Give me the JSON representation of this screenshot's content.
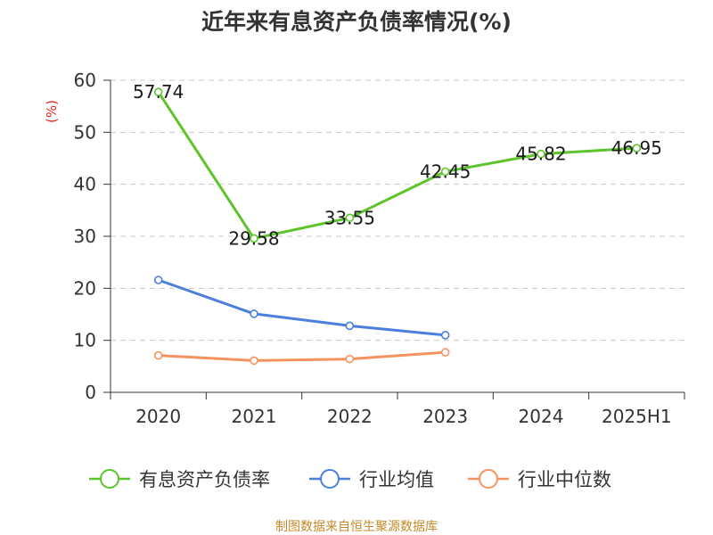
{
  "title": "近年来有息资产负债率情况(%)",
  "source": "制图数据来自恒生聚源数据库",
  "chart_data": {
    "type": "line",
    "title": "近年来有息资产负债率情况(%)",
    "ylabel": "(%)",
    "xlabel": "",
    "categories": [
      "2020",
      "2021",
      "2022",
      "2023",
      "2024",
      "2025H1"
    ],
    "ylim": [
      0,
      60
    ],
    "yticks": [
      0,
      10,
      20,
      30,
      40,
      50,
      60
    ],
    "grid": "horizontal-dashed",
    "legend_position": "bottom",
    "series": [
      {
        "name": "有息资产负债率",
        "color": "#5dc42a",
        "values": [
          57.74,
          29.58,
          33.55,
          42.45,
          45.82,
          46.95
        ],
        "labels": [
          "57.74",
          "29.58",
          "33.55",
          "42.45",
          "45.82",
          "46.95"
        ]
      },
      {
        "name": "行业均值",
        "color": "#4a7fde",
        "values": [
          21.6,
          15.1,
          12.8,
          11.0,
          null,
          null
        ]
      },
      {
        "name": "行业中位数",
        "color": "#f6925f",
        "values": [
          7.1,
          6.1,
          6.4,
          7.7,
          null,
          null
        ]
      }
    ]
  }
}
